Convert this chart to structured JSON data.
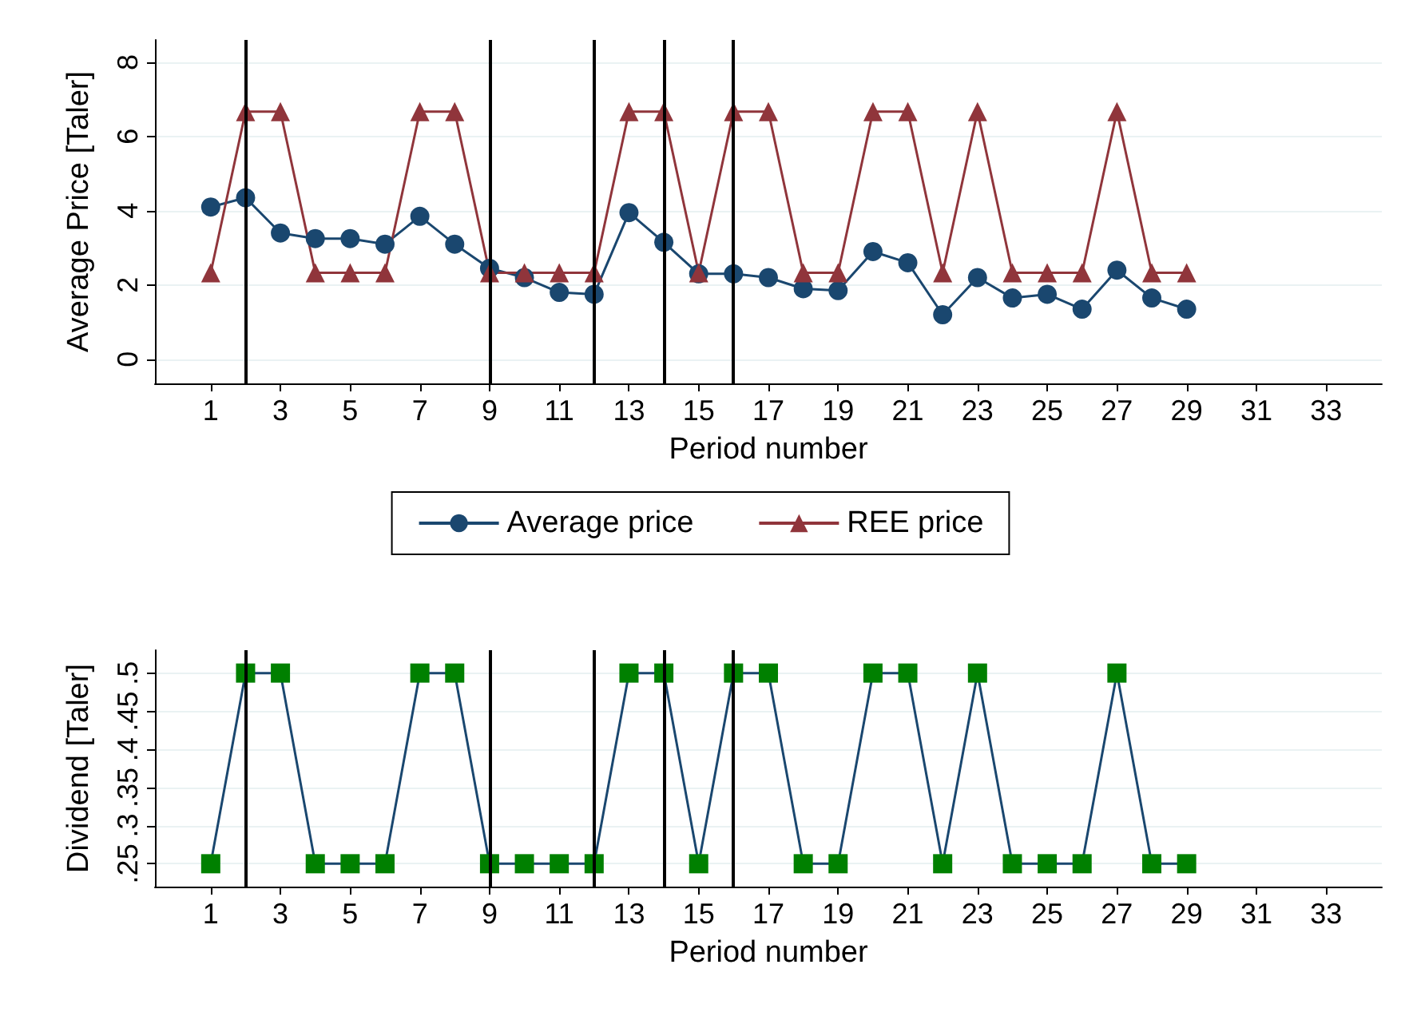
{
  "chart_data": [
    {
      "type": "line",
      "xlabel": "Period number",
      "ylabel": "Average Price [Taler]",
      "x": [
        1,
        2,
        3,
        4,
        5,
        6,
        7,
        8,
        9,
        10,
        11,
        12,
        13,
        14,
        15,
        16,
        17,
        18,
        19,
        20,
        21,
        22,
        23,
        24,
        25,
        26,
        27,
        28,
        29
      ],
      "xlim": [
        -0.6,
        34.6
      ],
      "xticks": [
        1,
        3,
        5,
        7,
        9,
        11,
        13,
        15,
        17,
        19,
        21,
        23,
        25,
        27,
        29,
        31,
        33
      ],
      "ylim": [
        -0.65,
        8.6
      ],
      "yticks": [
        0,
        2,
        4,
        6,
        8
      ],
      "grid": "y",
      "legend": "bottom",
      "series": [
        {
          "name": "Average price",
          "color": "#1a476f",
          "marker": "circle",
          "values": [
            4.1,
            4.35,
            3.4,
            3.25,
            3.25,
            3.1,
            3.85,
            3.1,
            2.45,
            2.2,
            1.8,
            1.75,
            3.95,
            3.15,
            2.3,
            2.3,
            2.2,
            1.9,
            1.85,
            2.9,
            2.6,
            1.2,
            2.2,
            1.65,
            1.75,
            1.35,
            2.4,
            1.65,
            1.35
          ]
        },
        {
          "name": "REE price",
          "color": "#90353b",
          "marker": "triangle",
          "values": [
            2.33,
            6.67,
            6.67,
            2.33,
            2.33,
            2.33,
            6.67,
            6.67,
            2.33,
            2.33,
            2.33,
            2.33,
            6.67,
            6.67,
            2.33,
            6.67,
            6.67,
            2.33,
            2.33,
            6.67,
            6.67,
            2.33,
            6.67,
            2.33,
            2.33,
            2.33,
            6.67,
            2.33,
            2.33
          ]
        }
      ],
      "ref_lines": [
        {
          "axis": "x",
          "value": 2,
          "color": "#000000"
        },
        {
          "axis": "x",
          "value": 9,
          "color": "#000000"
        },
        {
          "axis": "x",
          "value": 12,
          "color": "#000000"
        },
        {
          "axis": "x",
          "value": 14,
          "color": "#000000"
        },
        {
          "axis": "x",
          "value": 16,
          "color": "#000000"
        }
      ]
    },
    {
      "type": "line",
      "xlabel": "Period number",
      "ylabel": "Dividend [Taler]",
      "x": [
        1,
        2,
        3,
        4,
        5,
        6,
        7,
        8,
        9,
        10,
        11,
        12,
        13,
        14,
        15,
        16,
        17,
        18,
        19,
        20,
        21,
        22,
        23,
        24,
        25,
        26,
        27,
        28,
        29
      ],
      "xlim": [
        -0.6,
        34.6
      ],
      "xticks": [
        1,
        3,
        5,
        7,
        9,
        11,
        13,
        15,
        17,
        19,
        21,
        23,
        25,
        27,
        29,
        31,
        33
      ],
      "ylim": [
        0.22,
        0.53
      ],
      "yticks": [
        {
          "value": 0.25,
          "label": ".25"
        },
        {
          "value": 0.3,
          "label": ".3"
        },
        {
          "value": 0.35,
          "label": ".35"
        },
        {
          "value": 0.4,
          "label": ".4"
        },
        {
          "value": 0.45,
          "label": ".45"
        },
        {
          "value": 0.5,
          "label": ".5"
        }
      ],
      "grid": "y",
      "series": [
        {
          "color": "#008000",
          "marker": "square",
          "values": [
            0.25,
            0.5,
            0.5,
            0.25,
            0.25,
            0.25,
            0.5,
            0.5,
            0.25,
            0.25,
            0.25,
            0.25,
            0.5,
            0.5,
            0.25,
            0.5,
            0.5,
            0.25,
            0.25,
            0.5,
            0.5,
            0.25,
            0.5,
            0.25,
            0.25,
            0.25,
            0.5,
            0.25,
            0.25
          ]
        }
      ],
      "ref_lines": [
        {
          "axis": "x",
          "value": 2,
          "color": "#000000"
        },
        {
          "axis": "x",
          "value": 9,
          "color": "#000000"
        },
        {
          "axis": "x",
          "value": 12,
          "color": "#000000"
        },
        {
          "axis": "x",
          "value": 14,
          "color": "#000000"
        },
        {
          "axis": "x",
          "value": 16,
          "color": "#000000"
        }
      ]
    }
  ]
}
